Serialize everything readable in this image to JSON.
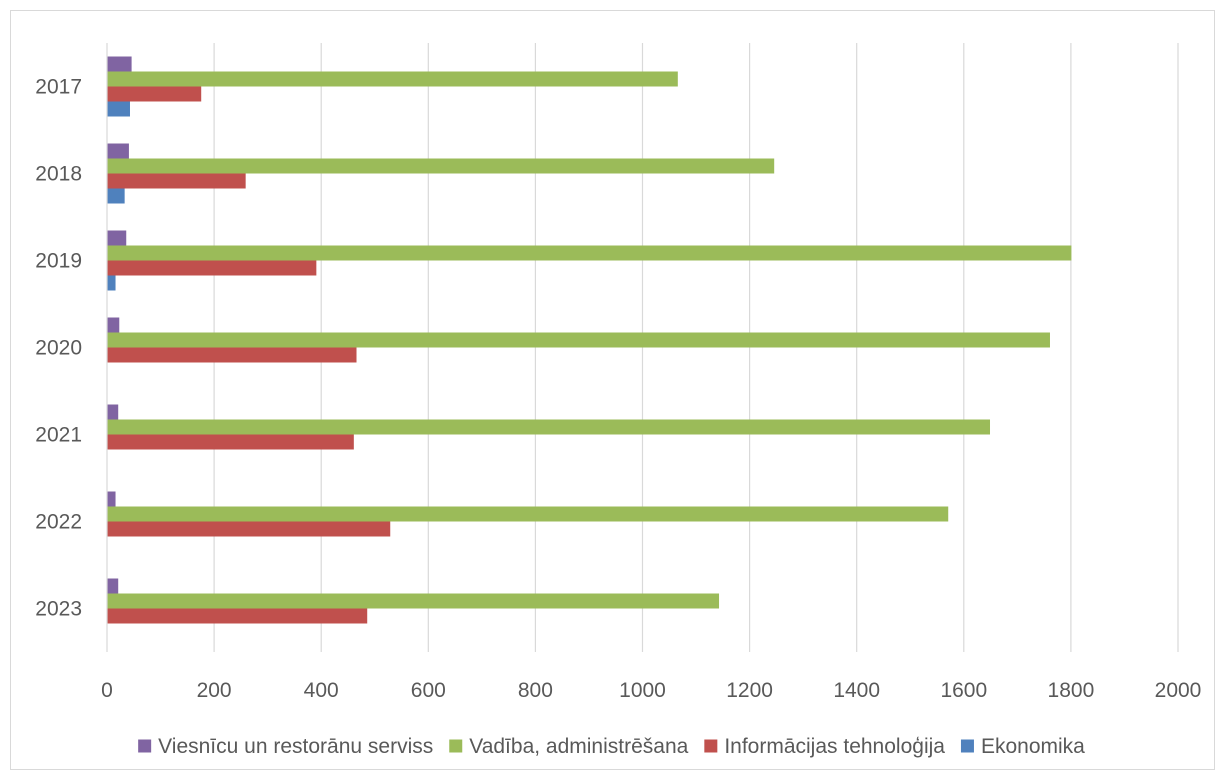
{
  "chart_data": {
    "type": "bar",
    "orientation": "horizontal",
    "categories": [
      "2017",
      "2018",
      "2019",
      "2020",
      "2021",
      "2022",
      "2023"
    ],
    "series": [
      {
        "name": "Viesnīcu un restorānu serviss",
        "color": "#8064a2",
        "values": [
          45,
          40,
          35,
          22,
          20,
          15,
          20
        ]
      },
      {
        "name": "Vadība, administrēšana",
        "color": "#9bbb59",
        "values": [
          1065,
          1245,
          1800,
          1760,
          1648,
          1570,
          1142
        ]
      },
      {
        "name": "Informācijas tehnoloģija",
        "color": "#c0504d",
        "values": [
          175,
          258,
          390,
          465,
          460,
          528,
          485
        ]
      },
      {
        "name": "Ekonomika",
        "color": "#4f81bd",
        "values": [
          42,
          32,
          15,
          null,
          null,
          null,
          null
        ]
      }
    ],
    "xlim": [
      0,
      2000
    ],
    "x_ticks": [
      "0",
      "200",
      "400",
      "600",
      "800",
      "1000",
      "1200",
      "1400",
      "1600",
      "1800",
      "2000"
    ],
    "grid": "vertical",
    "legend": "bottom",
    "title": "",
    "xlabel": "",
    "ylabel": ""
  }
}
